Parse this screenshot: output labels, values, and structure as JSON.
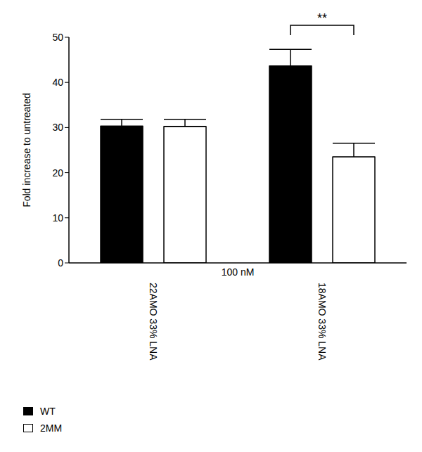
{
  "chart_data": {
    "type": "bar",
    "categories": [
      "22AMO 33% LNA",
      "18AMO 33% LNA"
    ],
    "x_label": "100 nM",
    "y_label": "Fold increase to untreated",
    "series": [
      {
        "name": "WT",
        "color": "#000000",
        "values": [
          30.3,
          43.6
        ],
        "errors": [
          1.5,
          3.7
        ]
      },
      {
        "name": "2MM",
        "color": "#ffffff",
        "values": [
          30.2,
          23.5
        ],
        "errors": [
          1.6,
          3.0
        ]
      }
    ],
    "ylim": [
      0,
      50
    ],
    "yticks": [
      0,
      10,
      20,
      30,
      40,
      50
    ],
    "grid": false,
    "legend": "bottom left",
    "annotations": [
      {
        "text": "**",
        "category": "18AMO 33% LNA"
      }
    ]
  }
}
